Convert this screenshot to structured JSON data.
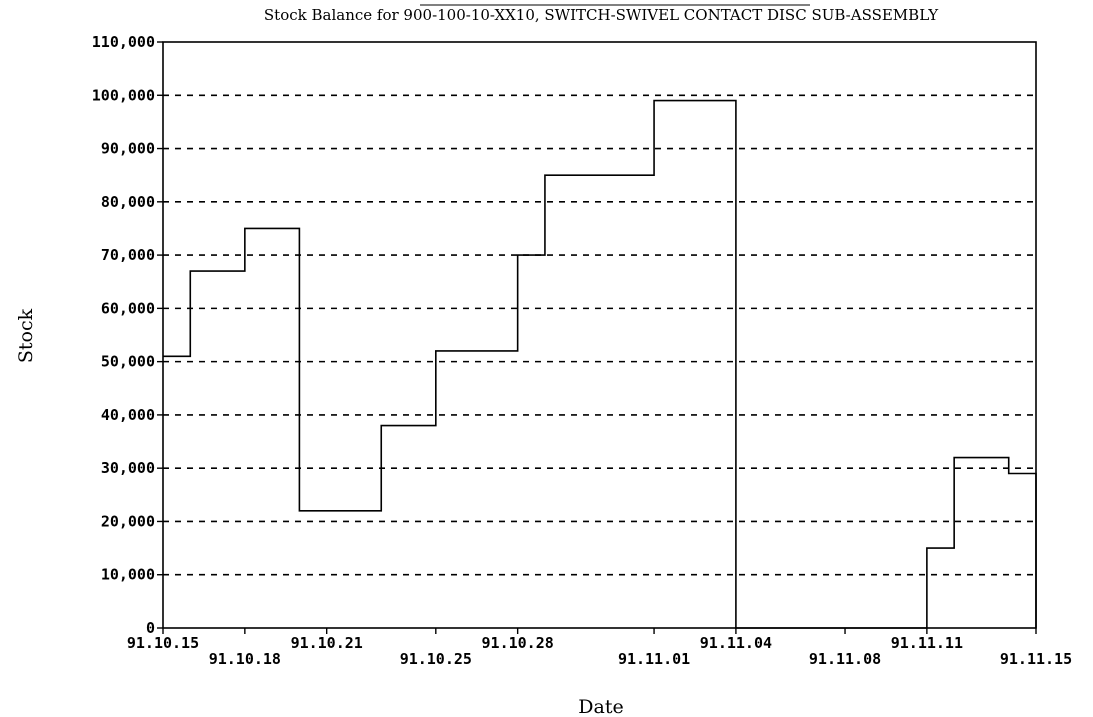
{
  "chart_data": {
    "type": "line",
    "style": "step",
    "title": "Stock Balance for 900-100-10-XX10, SWITCH-SWIVEL CONTACT DISC SUB-ASSEMBLY",
    "xlabel": "Date",
    "ylabel": "Stock",
    "ylim": [
      0,
      110000
    ],
    "grid": "horizontal dashed",
    "ytick_labels": [
      "0",
      "10,000",
      "20,000",
      "30,000",
      "40,000",
      "50,000",
      "60,000",
      "70,000",
      "80,000",
      "90,000",
      "100,000",
      "110,000"
    ],
    "xtick_labels": [
      "91.10.15",
      "91.10.18",
      "91.10.21",
      "91.10.25",
      "91.10.28",
      "91.11.01",
      "91.11.04",
      "91.11.08",
      "91.11.11",
      "91.11.15"
    ],
    "series": [
      {
        "x": [
          "91.10.15",
          "91.10.16",
          "91.10.18",
          "91.10.20",
          "91.10.22",
          "91.10.23",
          "91.10.25",
          "91.10.28",
          "91.10.29",
          "91.11.01",
          "91.11.04",
          "91.11.08",
          "91.11.11",
          "91.11.12",
          "91.11.14",
          "91.11.15"
        ],
        "values": [
          51000,
          67000,
          75000,
          22000,
          22000,
          38000,
          52000,
          70000,
          85000,
          99000,
          0,
          0,
          15000,
          32000,
          29000,
          0
        ]
      }
    ]
  }
}
